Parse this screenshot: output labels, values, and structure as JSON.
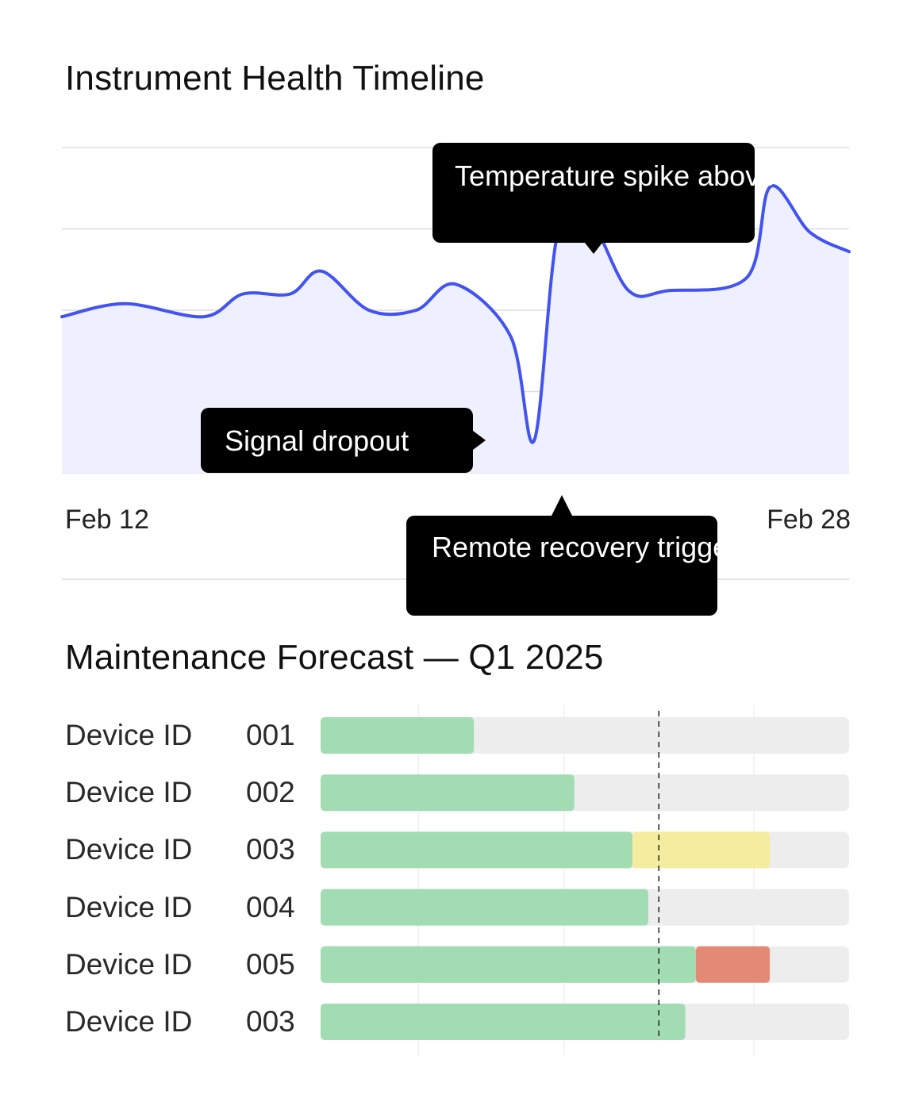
{
  "timeline": {
    "title": "Instrument Health Timeline",
    "x_start_label": "Feb 12",
    "x_end_label": "Feb 28",
    "annotations": {
      "spike": "Temperature spike above threshold",
      "dropout": "Signal dropout",
      "recovery": "Remote recovery triggered"
    }
  },
  "forecast": {
    "title": "Maintenance Forecast — Q1 2025"
  },
  "colors": {
    "line": "#4353f0",
    "area": "#eef0fd",
    "grid": "#dcdde3",
    "ok": "#a2dcb3",
    "warning": "#f4ec9e",
    "critical": "#e28a76",
    "track": "#ededed",
    "callout_bg": "#000000",
    "callout_text": "#ffffff"
  },
  "chart_data": [
    {
      "type": "line",
      "title": "Instrument Health Timeline",
      "x": [
        0,
        0.08,
        0.18,
        0.23,
        0.29,
        0.33,
        0.39,
        0.45,
        0.5,
        0.57,
        0.6,
        0.63,
        0.67,
        0.72,
        0.77,
        0.87,
        0.9,
        0.95,
        1.0
      ],
      "y": [
        48,
        52,
        48,
        55,
        55,
        62,
        50,
        50,
        58,
        42,
        10,
        74,
        78,
        56,
        56,
        60,
        88,
        74,
        68
      ],
      "x_tick_labels": [
        "Feb 12",
        "Feb 28"
      ],
      "ylim": [
        0,
        100
      ],
      "grid": true,
      "annotations": [
        {
          "text": "Temperature spike above threshold",
          "x": 0.67,
          "y": 78
        },
        {
          "text": "Signal dropout",
          "x": 0.63,
          "y": 10
        },
        {
          "text": "Remote recovery triggered",
          "x": 0.63,
          "y": 10
        }
      ]
    },
    {
      "type": "bar",
      "orientation": "horizontal",
      "stacked": true,
      "title": "Maintenance Forecast — Q1 2025",
      "categories": [
        {
          "prefix": "Device ID",
          "id": "001"
        },
        {
          "prefix": "Device ID",
          "id": "002"
        },
        {
          "prefix": "Device ID",
          "id": "003"
        },
        {
          "prefix": "Device ID",
          "id": "004"
        },
        {
          "prefix": "Device ID",
          "id": "005"
        },
        {
          "prefix": "Device ID",
          "id": "003"
        }
      ],
      "series": [
        {
          "status": "ok",
          "values": [
            0.29,
            0.48,
            0.59,
            0.62,
            0.71,
            0.69
          ]
        },
        {
          "status": "warning",
          "values": [
            0,
            0,
            0.26,
            0,
            0,
            0
          ]
        },
        {
          "status": "critical",
          "values": [
            0,
            0,
            0,
            0,
            0.14,
            0
          ]
        }
      ],
      "xlim": [
        0,
        1
      ],
      "marker": 0.64
    }
  ]
}
